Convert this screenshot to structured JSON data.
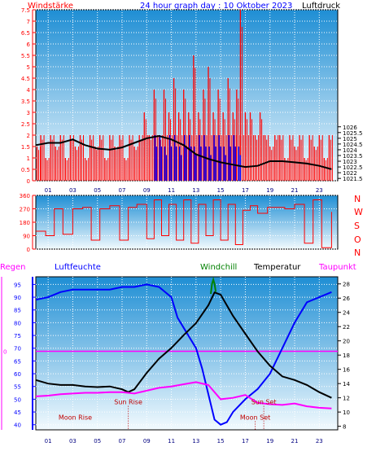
{
  "header": {
    "left_label": "Windstärke",
    "title": "24 hour graph day : 10 Oktober 2023",
    "right_label": "Luftdruck"
  },
  "middle": {
    "direction_labels": [
      "N",
      "W",
      "S",
      "O",
      "N"
    ]
  },
  "bottom_header": {
    "regen": "Regen",
    "luftfeuchte": "Luftfeuchte",
    "windchill": "Windchill",
    "temperatur": "Temperatur",
    "taupunkt": "Taupunkt"
  },
  "annotations": {
    "moon_rise": "Moon Rise",
    "sun_rise": "Sun Rise",
    "moon_set": "Moon Set",
    "sun_set": "Sun Set"
  },
  "colors": {
    "wind": "#ff0000",
    "gust_low": "#0000ff",
    "pressure": "#000000",
    "humidity": "#0000ff",
    "temperature": "#000000",
    "dewpoint": "#ff00ff",
    "windchill": "#008000",
    "rain": "#ff00ff",
    "sky_top": "#1e8ed4",
    "sky_bottom": "#f2fafe"
  },
  "chart_data": [
    {
      "type": "bar",
      "name": "top",
      "x_tick_labels": [
        "01",
        "03",
        "05",
        "07",
        "09",
        "11",
        "13",
        "15",
        "17",
        "19",
        "21",
        "23"
      ],
      "x_hours": [
        1,
        3,
        5,
        7,
        9,
        11,
        13,
        15,
        17,
        19,
        21,
        23
      ],
      "xlim": [
        0,
        24.5
      ],
      "left_axis": {
        "label": "Windstärke",
        "ylim": [
          0,
          7.5
        ],
        "ticks": [
          0,
          0.5,
          1,
          1.5,
          2,
          2.5,
          3,
          3.5,
          4,
          4.5,
          5,
          5.5,
          6,
          6.5,
          7,
          7.5
        ],
        "tick_labels": [
          "0",
          "0.5",
          "1",
          "1.5",
          "2",
          "2.5",
          "3",
          "3.5",
          "4",
          "4.5",
          "5",
          "5.5",
          "6",
          "6.5",
          "7",
          "7.5"
        ]
      },
      "right_axis": {
        "label": "Luftdruck",
        "ylim": [
          1021.3,
          1036.2
        ],
        "ticks": [
          1021.5,
          1022,
          1022.5,
          1023,
          1023.5,
          1024,
          1024.5,
          1025,
          1025.5,
          1026
        ],
        "tick_labels": [
          "1021.5",
          "1022",
          "1022.5",
          "1023",
          "1023.5",
          "1024",
          "1024.5",
          "1025",
          "1025.5",
          "1026"
        ]
      },
      "wind_bars": [
        {
          "hour": 0.1,
          "value": 1.5
        },
        {
          "hour": 0.4,
          "value": 2
        },
        {
          "hour": 0.8,
          "value": 1
        },
        {
          "hour": 1.2,
          "value": 2
        },
        {
          "hour": 1.6,
          "value": 1.5
        },
        {
          "hour": 2.0,
          "value": 2
        },
        {
          "hour": 2.4,
          "value": 1
        },
        {
          "hour": 2.8,
          "value": 2
        },
        {
          "hour": 3.2,
          "value": 1.5
        },
        {
          "hour": 3.6,
          "value": 2
        },
        {
          "hour": 4.0,
          "value": 1
        },
        {
          "hour": 4.4,
          "value": 2
        },
        {
          "hour": 4.8,
          "value": 1.5
        },
        {
          "hour": 5.2,
          "value": 2
        },
        {
          "hour": 5.6,
          "value": 1
        },
        {
          "hour": 6.0,
          "value": 2
        },
        {
          "hour": 6.4,
          "value": 1.5
        },
        {
          "hour": 6.8,
          "value": 2
        },
        {
          "hour": 7.2,
          "value": 1
        },
        {
          "hour": 7.6,
          "value": 2
        },
        {
          "hour": 8.0,
          "value": 1.5
        },
        {
          "hour": 8.4,
          "value": 2
        },
        {
          "hour": 8.8,
          "value": 3
        },
        {
          "hour": 9.2,
          "value": 2
        },
        {
          "hour": 9.6,
          "value": 4
        },
        {
          "hour": 10.0,
          "value": 2
        },
        {
          "hour": 10.4,
          "value": 4
        },
        {
          "hour": 10.8,
          "value": 3
        },
        {
          "hour": 11.2,
          "value": 4.5
        },
        {
          "hour": 11.6,
          "value": 3
        },
        {
          "hour": 12.0,
          "value": 4
        },
        {
          "hour": 12.4,
          "value": 3
        },
        {
          "hour": 12.8,
          "value": 5.5
        },
        {
          "hour": 13.2,
          "value": 3
        },
        {
          "hour": 13.6,
          "value": 4
        },
        {
          "hour": 14.0,
          "value": 5
        },
        {
          "hour": 14.4,
          "value": 3
        },
        {
          "hour": 14.8,
          "value": 4
        },
        {
          "hour": 15.2,
          "value": 3
        },
        {
          "hour": 15.6,
          "value": 4.5
        },
        {
          "hour": 16.0,
          "value": 3
        },
        {
          "hour": 16.3,
          "value": 4
        },
        {
          "hour": 16.6,
          "value": 7.5
        },
        {
          "hour": 17.0,
          "value": 3
        },
        {
          "hour": 17.4,
          "value": 3
        },
        {
          "hour": 17.8,
          "value": 2
        },
        {
          "hour": 18.2,
          "value": 3
        },
        {
          "hour": 18.6,
          "value": 2
        },
        {
          "hour": 19.0,
          "value": 1.5
        },
        {
          "hour": 19.4,
          "value": 2
        },
        {
          "hour": 19.8,
          "value": 2
        },
        {
          "hour": 20.2,
          "value": 1
        },
        {
          "hour": 20.6,
          "value": 2
        },
        {
          "hour": 21.0,
          "value": 1.5
        },
        {
          "hour": 21.4,
          "value": 2
        },
        {
          "hour": 21.8,
          "value": 1
        },
        {
          "hour": 22.2,
          "value": 2
        },
        {
          "hour": 22.6,
          "value": 1.5
        },
        {
          "hour": 23.0,
          "value": 2
        },
        {
          "hour": 23.4,
          "value": 1
        },
        {
          "hour": 23.8,
          "value": 2
        }
      ],
      "gust_low_bars": [
        {
          "hour": 9.6,
          "value": 2
        },
        {
          "hour": 10.0,
          "value": 2
        },
        {
          "hour": 10.4,
          "value": 1.5
        },
        {
          "hour": 10.8,
          "value": 2
        },
        {
          "hour": 11.2,
          "value": 2
        },
        {
          "hour": 11.6,
          "value": 1.5
        },
        {
          "hour": 12.0,
          "value": 2
        },
        {
          "hour": 12.4,
          "value": 2
        },
        {
          "hour": 12.8,
          "value": 1.5
        },
        {
          "hour": 13.2,
          "value": 2
        },
        {
          "hour": 13.6,
          "value": 2
        },
        {
          "hour": 14.0,
          "value": 1.5
        },
        {
          "hour": 14.4,
          "value": 2
        },
        {
          "hour": 14.8,
          "value": 2
        },
        {
          "hour": 15.2,
          "value": 1.5
        },
        {
          "hour": 15.6,
          "value": 2
        },
        {
          "hour": 16.0,
          "value": 2
        },
        {
          "hour": 16.4,
          "value": 1.5
        }
      ],
      "pressure_series": {
        "hours": [
          0,
          1,
          2,
          3,
          4,
          5,
          6,
          7,
          8,
          9,
          10,
          11,
          12,
          13,
          14,
          15,
          16,
          17,
          18,
          19,
          20,
          21,
          22,
          23,
          24
        ],
        "values": [
          1024.4,
          1024.6,
          1024.6,
          1024.9,
          1024.4,
          1024.1,
          1024.0,
          1024.2,
          1024.6,
          1025.0,
          1025.2,
          1024.9,
          1024.4,
          1023.6,
          1023.2,
          1022.9,
          1022.7,
          1022.5,
          1022.6,
          1023.0,
          1023.0,
          1022.9,
          1022.8,
          1022.6,
          1022.3
        ]
      }
    },
    {
      "type": "bar",
      "name": "wind-direction",
      "xlim": [
        0,
        24.5
      ],
      "ylim": [
        0,
        360
      ],
      "ticks": [
        0,
        90,
        180,
        270,
        360
      ],
      "tick_labels": [
        "0",
        "90",
        "180",
        "270",
        "360"
      ],
      "direction_series": {
        "hours": [
          0.0,
          0.8,
          1.5,
          2.2,
          3.0,
          3.8,
          4.5,
          5.2,
          6.0,
          6.8,
          7.5,
          8.2,
          9.0,
          9.6,
          10.2,
          10.8,
          11.4,
          12.0,
          12.6,
          13.2,
          13.8,
          14.4,
          15.0,
          15.6,
          16.2,
          16.8,
          17.4,
          18.0,
          18.8,
          19.5,
          20.2,
          21.0,
          21.8,
          22.5,
          23.2,
          24.0
        ],
        "values": [
          120,
          90,
          270,
          100,
          270,
          280,
          60,
          270,
          290,
          60,
          280,
          300,
          70,
          330,
          90,
          300,
          60,
          330,
          40,
          300,
          90,
          330,
          60,
          300,
          30,
          260,
          290,
          240,
          280,
          280,
          270,
          300,
          40,
          330,
          10,
          250
        ]
      }
    },
    {
      "type": "line",
      "name": "temperature-humidity",
      "xlim": [
        0,
        24.5
      ],
      "left_axis": {
        "label": "Luftfeuchte",
        "ylim": [
          38,
          98
        ],
        "ticks": [
          40,
          45,
          50,
          55,
          60,
          65,
          70,
          75,
          80,
          85,
          90,
          95
        ],
        "tick_labels": [
          "40",
          "45",
          "50",
          "55",
          "60",
          "65",
          "70",
          "75",
          "80",
          "85",
          "90",
          "95"
        ]
      },
      "rain_axis": {
        "label": "Regen",
        "ticks": [
          0
        ],
        "tick_labels": [
          "0"
        ]
      },
      "right_axis": {
        "label": "Temperatur",
        "ylim": [
          7.5,
          29
        ],
        "ticks": [
          8,
          10,
          12,
          14,
          16,
          18,
          20,
          22,
          24,
          26,
          28
        ],
        "tick_labels": [
          "8",
          "10",
          "12",
          "14",
          "16",
          "18",
          "20",
          "22",
          "24",
          "26",
          "28"
        ]
      },
      "series": [
        {
          "name": "Luftfeuchte",
          "hours": [
            0,
            1,
            2,
            3,
            4,
            5,
            6,
            7,
            8,
            9,
            10,
            11,
            11.5,
            12,
            12.5,
            13,
            13.5,
            14,
            14.5,
            15,
            15.5,
            16,
            17,
            18,
            19,
            20,
            21,
            22,
            23,
            24
          ],
          "values": [
            89,
            90,
            92,
            93,
            93,
            93,
            93,
            94,
            94,
            95,
            94,
            90,
            82,
            78,
            74,
            70,
            62,
            52,
            42,
            40,
            41,
            45,
            50,
            54,
            60,
            70,
            80,
            88,
            90,
            92
          ]
        },
        {
          "name": "Temperatur",
          "hours": [
            0,
            1,
            2,
            3,
            4,
            5,
            6,
            7,
            7.5,
            8,
            9,
            10,
            11,
            12,
            13,
            14,
            14.5,
            15,
            16,
            17,
            18,
            19,
            20,
            21,
            22,
            23,
            24
          ],
          "values": [
            14.5,
            14.0,
            13.8,
            13.8,
            13.6,
            13.5,
            13.6,
            13.2,
            12.8,
            13.2,
            15.5,
            17.5,
            19.0,
            20.8,
            22.5,
            25.0,
            26.8,
            26.5,
            23.5,
            21.0,
            18.5,
            16.5,
            15.0,
            14.5,
            13.8,
            12.8,
            12.0
          ]
        },
        {
          "name": "Taupunkt",
          "hours": [
            0,
            1,
            2,
            3,
            4,
            5,
            6,
            7,
            8,
            9,
            10,
            11,
            12,
            13,
            14,
            15,
            16,
            17,
            18,
            19,
            20,
            21,
            22,
            23,
            24
          ],
          "values": [
            12.2,
            12.3,
            12.5,
            12.6,
            12.7,
            12.7,
            12.8,
            12.8,
            12.6,
            13.0,
            13.4,
            13.6,
            13.9,
            14.2,
            13.8,
            11.8,
            12.0,
            12.4,
            11.3,
            11.1,
            11.0,
            11.2,
            10.8,
            10.6,
            10.5
          ]
        },
        {
          "name": "Windchill",
          "hours": [
            14.2,
            14.3,
            14.4,
            14.5,
            14.6
          ],
          "values": [
            26.6,
            28.0,
            28.6,
            28.0,
            26.9
          ]
        }
      ],
      "rain_line_level": 68.8,
      "markers": [
        {
          "label": "Moon Rise",
          "hour": 3.2,
          "value": 42
        },
        {
          "label": "Sun Rise",
          "hour": 7.5,
          "value": 48
        },
        {
          "label": "Moon Set",
          "hour": 17.8,
          "value": 42
        },
        {
          "label": "Sun Set",
          "hour": 18.5,
          "value": 48
        }
      ]
    }
  ]
}
